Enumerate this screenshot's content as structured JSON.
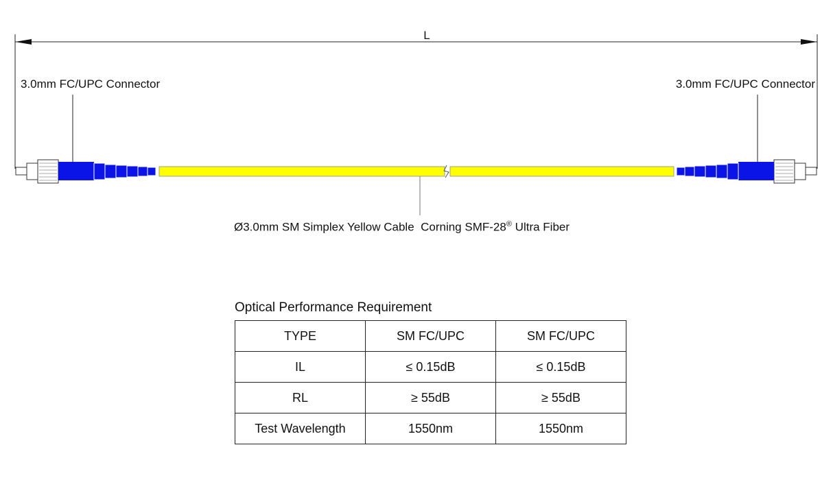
{
  "dimension": {
    "label": "L"
  },
  "left_connector": {
    "label": "3.0mm FC/UPC Connector"
  },
  "right_connector": {
    "label": "3.0mm FC/UPC Connector"
  },
  "cable": {
    "label": "Ø3.0mm SM Simplex Yellow Cable  Corning SMF-28",
    "trademark": "®",
    "label_suffix": " Ultra Fiber",
    "color": "#ffff00"
  },
  "connector_color": "#0a14e6",
  "table": {
    "title": "Optical Performance Requirement",
    "rows": [
      [
        "TYPE",
        "SM FC/UPC",
        "SM FC/UPC"
      ],
      [
        "IL",
        "≤ 0.15dB",
        "≤ 0.15dB"
      ],
      [
        "RL",
        "≥ 55dB",
        "≥ 55dB"
      ],
      [
        "Test Wavelength",
        "1550nm",
        "1550nm"
      ]
    ]
  }
}
